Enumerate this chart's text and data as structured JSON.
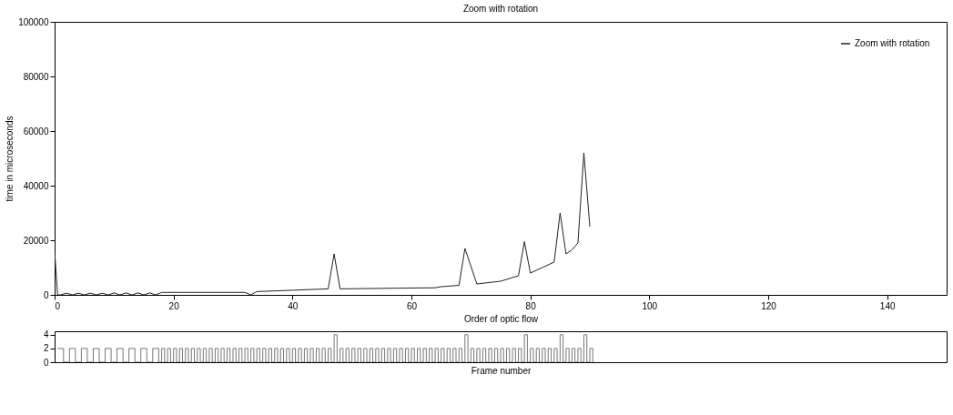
{
  "chart_data": [
    {
      "type": "line",
      "title": "Zoom with rotation",
      "xlabel": "Order of optic flow",
      "ylabel": "time in microseconds",
      "xlim": [
        0,
        150
      ],
      "xticks": [
        0,
        20,
        40,
        60,
        80,
        100,
        120,
        140
      ],
      "ylim": [
        0,
        100000
      ],
      "yticks": [
        0,
        20000,
        40000,
        60000,
        80000,
        100000
      ],
      "grid": false,
      "legend": "top right",
      "series": [
        {
          "name": "Zoom with rotation",
          "color": "#222222",
          "x": [
            0,
            0.5,
            1,
            2,
            3,
            4,
            5,
            6,
            7,
            8,
            9,
            10,
            11,
            12,
            13,
            14,
            15,
            16,
            17,
            18,
            32,
            33,
            34,
            40,
            46,
            47,
            48,
            64,
            65,
            68,
            69,
            71,
            75,
            78,
            79,
            80,
            82,
            84,
            85,
            86,
            87,
            88,
            89,
            90
          ],
          "values": [
            16000,
            0,
            0,
            600,
            0,
            600,
            0,
            600,
            0,
            600,
            0,
            700,
            0,
            700,
            0,
            700,
            0,
            700,
            0,
            900,
            900,
            0,
            1200,
            1700,
            2200,
            15000,
            2200,
            2600,
            3000,
            3500,
            17000,
            4000,
            5000,
            7000,
            19500,
            8000,
            10000,
            12000,
            30000,
            15000,
            16500,
            19000,
            52000,
            25000
          ]
        }
      ]
    },
    {
      "type": "step",
      "xlabel": "Frame number",
      "xlim": [
        0,
        150
      ],
      "ylim": [
        0,
        4.5
      ],
      "yticks": [
        0,
        2,
        4
      ],
      "tick_labels": "y",
      "grid": false,
      "series": [
        {
          "color": "#777777",
          "x": [
            0.5,
            1.5,
            2.5,
            3.5,
            4.5,
            5.5,
            6.5,
            7.5,
            8.5,
            9.5,
            10.5,
            11.5,
            12.5,
            13.5,
            14.5,
            15.5,
            16.5,
            17.5,
            18,
            18.5,
            19,
            19.5,
            20,
            20.5,
            21,
            21.5,
            22,
            22.5,
            23,
            23.5,
            24,
            24.5,
            25,
            25.5,
            26,
            26.5,
            27,
            27.5,
            28,
            28.5,
            29,
            29.5,
            30,
            30.5,
            31,
            31.5,
            32,
            32.5,
            33,
            33.5,
            34,
            34.5,
            35,
            35.5,
            36,
            36.5,
            37,
            37.5,
            38,
            38.5,
            39,
            39.5,
            40,
            40.5,
            41,
            41.5,
            42,
            42.5,
            43,
            43.5,
            44,
            44.5,
            45,
            45.5,
            46,
            46.5,
            47,
            47.5,
            48,
            48.5,
            49,
            49.5,
            50,
            50.5,
            51,
            51.5,
            52,
            52.5,
            53,
            53.5,
            54,
            54.5,
            55,
            55.5,
            56,
            56.5,
            57,
            57.5,
            58,
            58.5,
            59,
            59.5,
            60,
            60.5,
            61,
            61.5,
            62,
            62.5,
            63,
            63.5,
            64,
            64.5,
            65,
            65.5,
            66,
            66.5,
            67,
            67.5,
            68,
            68.5,
            69,
            69.5,
            70,
            70.5,
            71,
            71.5,
            72,
            72.5,
            73,
            73.5,
            74,
            74.5,
            75,
            75.5,
            76,
            76.5,
            77,
            77.5,
            78,
            78.5,
            79,
            79.5,
            80,
            80.5,
            81,
            81.5,
            82,
            82.5,
            83,
            83.5,
            84,
            84.5,
            85,
            85.5,
            86,
            86.5,
            87,
            87.5,
            88,
            88.5,
            89,
            89.5,
            90,
            90.5
          ],
          "values": [
            2,
            0,
            2,
            0,
            2,
            0,
            2,
            0,
            2,
            0,
            2,
            0,
            2,
            0,
            2,
            0,
            2,
            0,
            2,
            0,
            2,
            0,
            2,
            0,
            2,
            0,
            2,
            0,
            2,
            0,
            2,
            0,
            2,
            0,
            2,
            0,
            2,
            0,
            2,
            0,
            2,
            0,
            2,
            0,
            2,
            0,
            2,
            0,
            2,
            0,
            2,
            0,
            2,
            0,
            2,
            0,
            2,
            0,
            2,
            0,
            2,
            0,
            2,
            0,
            2,
            0,
            2,
            0,
            2,
            0,
            2,
            0,
            2,
            0,
            2,
            0,
            4,
            0,
            2,
            0,
            2,
            0,
            2,
            0,
            2,
            0,
            2,
            0,
            2,
            0,
            2,
            0,
            2,
            0,
            2,
            0,
            2,
            0,
            2,
            0,
            2,
            0,
            2,
            0,
            2,
            0,
            2,
            0,
            2,
            0,
            2,
            0,
            2,
            0,
            2,
            0,
            2,
            0,
            2,
            0,
            4,
            0,
            2,
            0,
            2,
            0,
            2,
            0,
            2,
            0,
            2,
            0,
            2,
            0,
            2,
            0,
            2,
            0,
            2,
            0,
            4,
            0,
            2,
            0,
            2,
            0,
            2,
            0,
            2,
            0,
            2,
            0,
            4,
            0,
            2,
            0,
            2,
            0,
            2,
            0,
            4,
            0,
            2,
            0
          ]
        }
      ]
    }
  ]
}
